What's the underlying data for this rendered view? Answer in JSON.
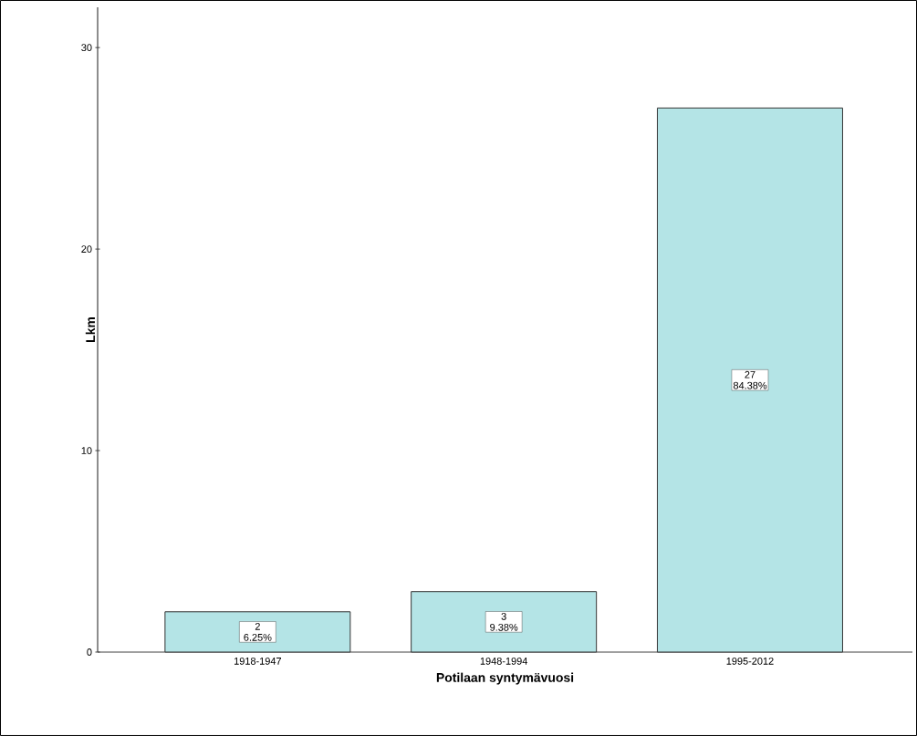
{
  "chart_data": {
    "type": "bar",
    "xlabel": "Potilaan syntymävuosi",
    "ylabel": "Lkm",
    "categories": [
      "1918-1947",
      "1948-1994",
      "1995-2012"
    ],
    "values": [
      2,
      3,
      27
    ],
    "color": "#b4e4e6",
    "value_labels": [
      "2 6.25%",
      "3 9.38%",
      "27 84.38%"
    ],
    "ylim": [
      0,
      32
    ],
    "yticks": [
      0,
      10,
      20,
      30
    ]
  }
}
